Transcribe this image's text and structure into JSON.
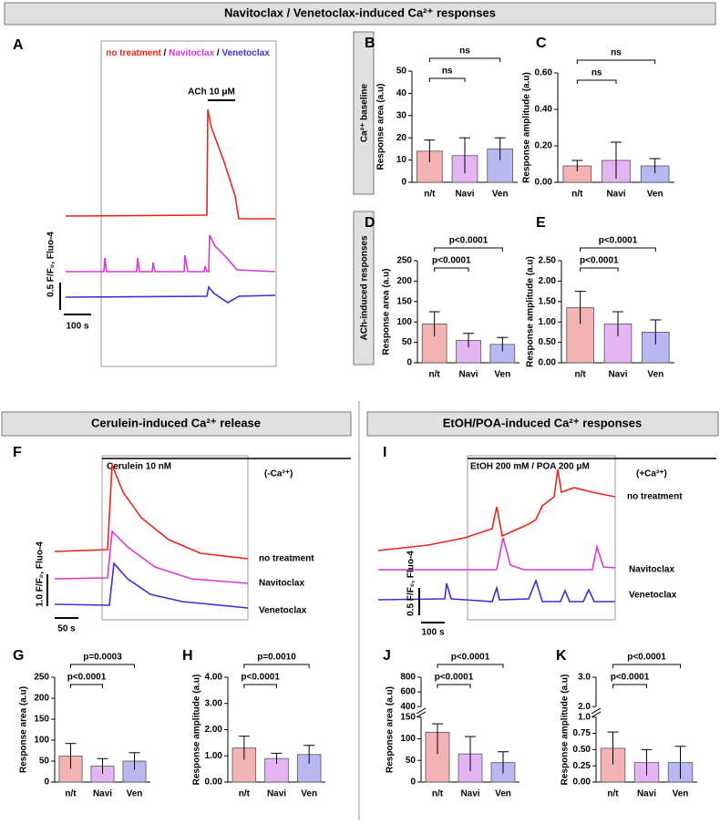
{
  "header": {
    "title": "Navitoclax / Venetoclax-induced Ca²⁺ responses"
  },
  "panel_A": {
    "label": "A",
    "legend": [
      "no treatment",
      "Navitoclax",
      "Venetoclax"
    ],
    "legend_separator": " / ",
    "stimulus": "ACh 10 μM",
    "scale_y": "0.5 F/F₀, Fluo-4",
    "scale_x": "100 s"
  },
  "side_labels": [
    "Ca²⁺ baseline",
    "ACh-induced responses"
  ],
  "sections": [
    "Cerulein-induced Ca²⁺ release",
    "EtOH/POA-induced Ca²⁺ responses"
  ],
  "panel_F": {
    "label": "F",
    "stimulus": "Cerulein 10 nM",
    "condition": "(-Ca²⁺)",
    "trace_labels": [
      "no treatment",
      "Navitoclax",
      "Venetoclax"
    ],
    "scale_y": "1.0 F/F₀, Fluo-4",
    "scale_x": "50 s"
  },
  "panel_I": {
    "label": "I",
    "stimulus": "EtOH 200 mM / POA 200 μM",
    "condition": "(+Ca²⁺)",
    "trace_labels": [
      "no treatment",
      "Navitoclax",
      "Venetoclax"
    ],
    "scale_y": "0.5 F/F₀, Fluo-4",
    "scale_x": "100 s"
  },
  "chart_data": [
    {
      "type": "bar",
      "panel": "B",
      "ylabel": "Response area (a.u)",
      "categories": [
        "n/t",
        "Navi",
        "Ven"
      ],
      "values": [
        14,
        12,
        15
      ],
      "errors": [
        5,
        8,
        5
      ],
      "colors": [
        "#f4b3b3",
        "#e4b5f2",
        "#b8b8f2"
      ],
      "ylim": [
        0,
        50
      ],
      "yticks": [
        0,
        10,
        20,
        30,
        40,
        50
      ],
      "comparisons": [
        "ns",
        "ns"
      ]
    },
    {
      "type": "bar",
      "panel": "C",
      "ylabel": "Response amplitude (a.u)",
      "categories": [
        "n/t",
        "Navi",
        "Ven"
      ],
      "values": [
        0.09,
        0.12,
        0.09
      ],
      "errors": [
        0.03,
        0.1,
        0.04
      ],
      "colors": [
        "#f4b3b3",
        "#e4b5f2",
        "#b8b8f2"
      ],
      "ylim": [
        0,
        0.6
      ],
      "yticks": [
        {
          "value": 0,
          "label": "0.00"
        },
        {
          "value": 0.2,
          "label": "0.20"
        },
        {
          "value": 0.4,
          "label": "0.40"
        },
        {
          "value": 0.6,
          "label": "0.60"
        }
      ],
      "comparisons": [
        "ns",
        "ns"
      ]
    },
    {
      "type": "bar",
      "panel": "D",
      "ylabel": "Response area (a.u)",
      "categories": [
        "n/t",
        "Navi",
        "Ven"
      ],
      "values": [
        95,
        55,
        45
      ],
      "errors": [
        30,
        17,
        17
      ],
      "colors": [
        "#f4b3b3",
        "#e4b5f2",
        "#b8b8f2"
      ],
      "ylim": [
        0,
        250
      ],
      "yticks": [
        0,
        50,
        100,
        150,
        200,
        250
      ],
      "comparisons": [
        "p<0.0001",
        "p<0.0001"
      ]
    },
    {
      "type": "bar",
      "panel": "E",
      "ylabel": "Response amplitude (a.u)",
      "categories": [
        "n/t",
        "Navi",
        "Ven"
      ],
      "values": [
        1.35,
        0.95,
        0.75
      ],
      "errors": [
        0.4,
        0.3,
        0.3
      ],
      "colors": [
        "#f4b3b3",
        "#e4b5f2",
        "#b8b8f2"
      ],
      "ylim": [
        0,
        2.5
      ],
      "yticks": [
        {
          "value": 0,
          "label": "0.00"
        },
        {
          "value": 0.5,
          "label": "0.50"
        },
        {
          "value": 1,
          "label": "1.00"
        },
        {
          "value": 1.5,
          "label": "1.50"
        },
        {
          "value": 2,
          "label": "2.00"
        },
        {
          "value": 2.5,
          "label": "2.50"
        }
      ],
      "comparisons": [
        "p<0.0001",
        "p<0.0001"
      ]
    },
    {
      "type": "bar",
      "panel": "G",
      "ylabel": "Response area (a.u)",
      "categories": [
        "n/t",
        "Navi",
        "Ven"
      ],
      "values": [
        62,
        38,
        50
      ],
      "errors": [
        30,
        18,
        20
      ],
      "colors": [
        "#f4b3b3",
        "#e4b5f2",
        "#b8b8f2"
      ],
      "ylim": [
        0,
        250
      ],
      "yticks": [
        0,
        50,
        100,
        150,
        200,
        250
      ],
      "comparisons": [
        "p<0.0001",
        "p=0.0003"
      ]
    },
    {
      "type": "bar",
      "panel": "H",
      "ylabel": "Response amplitude (a.u)",
      "categories": [
        "n/t",
        "Navi",
        "Ven"
      ],
      "values": [
        1.3,
        0.9,
        1.05
      ],
      "errors": [
        0.45,
        0.2,
        0.35
      ],
      "colors": [
        "#f4b3b3",
        "#e4b5f2",
        "#b8b8f2"
      ],
      "ylim": [
        0,
        4
      ],
      "yticks": [
        {
          "value": 0,
          "label": "0.00"
        },
        {
          "value": 1,
          "label": "1.00"
        },
        {
          "value": 2,
          "label": "2.00"
        },
        {
          "value": 3,
          "label": "3.00"
        },
        {
          "value": 4,
          "label": "4.00"
        }
      ],
      "comparisons": [
        "p<0.0001",
        "p=0.0010"
      ]
    },
    {
      "type": "bar",
      "panel": "J",
      "ylabel": "Response area (a.u)",
      "categories": [
        "n/t",
        "Navi",
        "Ven"
      ],
      "values": [
        115,
        65,
        45
      ],
      "errors": [
        50,
        40,
        25
      ],
      "colors": [
        "#f4b3b3",
        "#e4b5f2",
        "#b8b8f2"
      ],
      "ylim": [
        0,
        800
      ],
      "axis_break": true,
      "yticks": [
        0,
        50,
        100,
        150,
        400,
        600,
        800
      ],
      "comparisons": [
        "p<0.0001",
        "p<0.0001"
      ]
    },
    {
      "type": "bar",
      "panel": "K",
      "ylabel": "Response amplitude (a.u)",
      "categories": [
        "n/t",
        "Navi",
        "Ven"
      ],
      "values": [
        0.52,
        0.3,
        0.3
      ],
      "errors": [
        0.25,
        0.2,
        0.25
      ],
      "colors": [
        "#f4b3b3",
        "#e4b5f2",
        "#b8b8f2"
      ],
      "ylim": [
        0,
        3
      ],
      "axis_break": true,
      "yticks": [
        {
          "value": 0,
          "label": "0.00"
        },
        {
          "value": 0.25,
          "label": "0.25"
        },
        {
          "value": 0.5,
          "label": "0.50"
        },
        {
          "value": 0.75,
          "label": "0.75"
        },
        {
          "value": 1,
          "label": "1.0"
        },
        {
          "value": 2,
          "label": "2.0"
        },
        {
          "value": 3,
          "label": "3.0"
        }
      ],
      "comparisons": [
        "p<0.0001",
        "p<0.0001"
      ]
    }
  ]
}
